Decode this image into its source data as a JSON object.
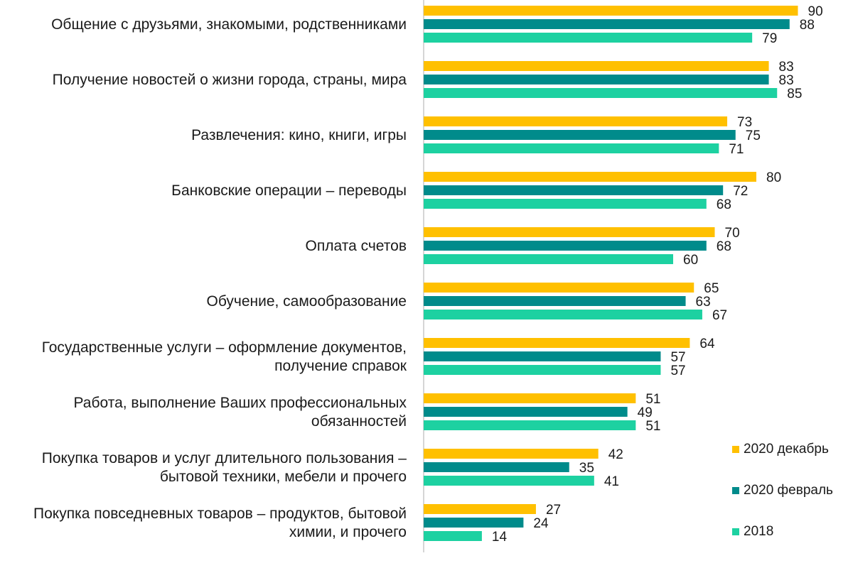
{
  "chart_data": {
    "type": "bar",
    "orientation": "horizontal",
    "categories": [
      [
        "Общение с друзьями, знакомыми, родственниками"
      ],
      [
        "Получение новостей о жизни города, страны, мира"
      ],
      [
        "Развлечения: кино, книги, игры"
      ],
      [
        "Банковские операции – переводы"
      ],
      [
        "Оплата счетов"
      ],
      [
        "Обучение, самообразование"
      ],
      [
        "Государственные услуги – оформление документов,",
        "получение справок"
      ],
      [
        "Работа, выполнение Ваших профессиональных",
        "обязанностей"
      ],
      [
        "Покупка товаров и услуг длительного пользования –",
        "бытовой техники, мебели и прочего"
      ],
      [
        "Покупка повседневных товаров – продуктов, бытовой",
        "химии, и прочего"
      ]
    ],
    "series": [
      {
        "name": "2020 декабрь",
        "color": "#FFC000",
        "values": [
          90,
          83,
          73,
          80,
          70,
          65,
          64,
          51,
          42,
          27
        ]
      },
      {
        "name": "2020 февраль",
        "color": "#008B8B",
        "values": [
          88,
          83,
          75,
          72,
          68,
          63,
          57,
          49,
          35,
          24
        ]
      },
      {
        "name": "2018",
        "color": "#1DD1A1",
        "values": [
          79,
          85,
          71,
          68,
          60,
          67,
          57,
          51,
          41,
          14
        ]
      }
    ],
    "xlim": [
      0,
      100
    ],
    "legend_position": "bottom-right",
    "data_labels": true,
    "grid": false
  }
}
